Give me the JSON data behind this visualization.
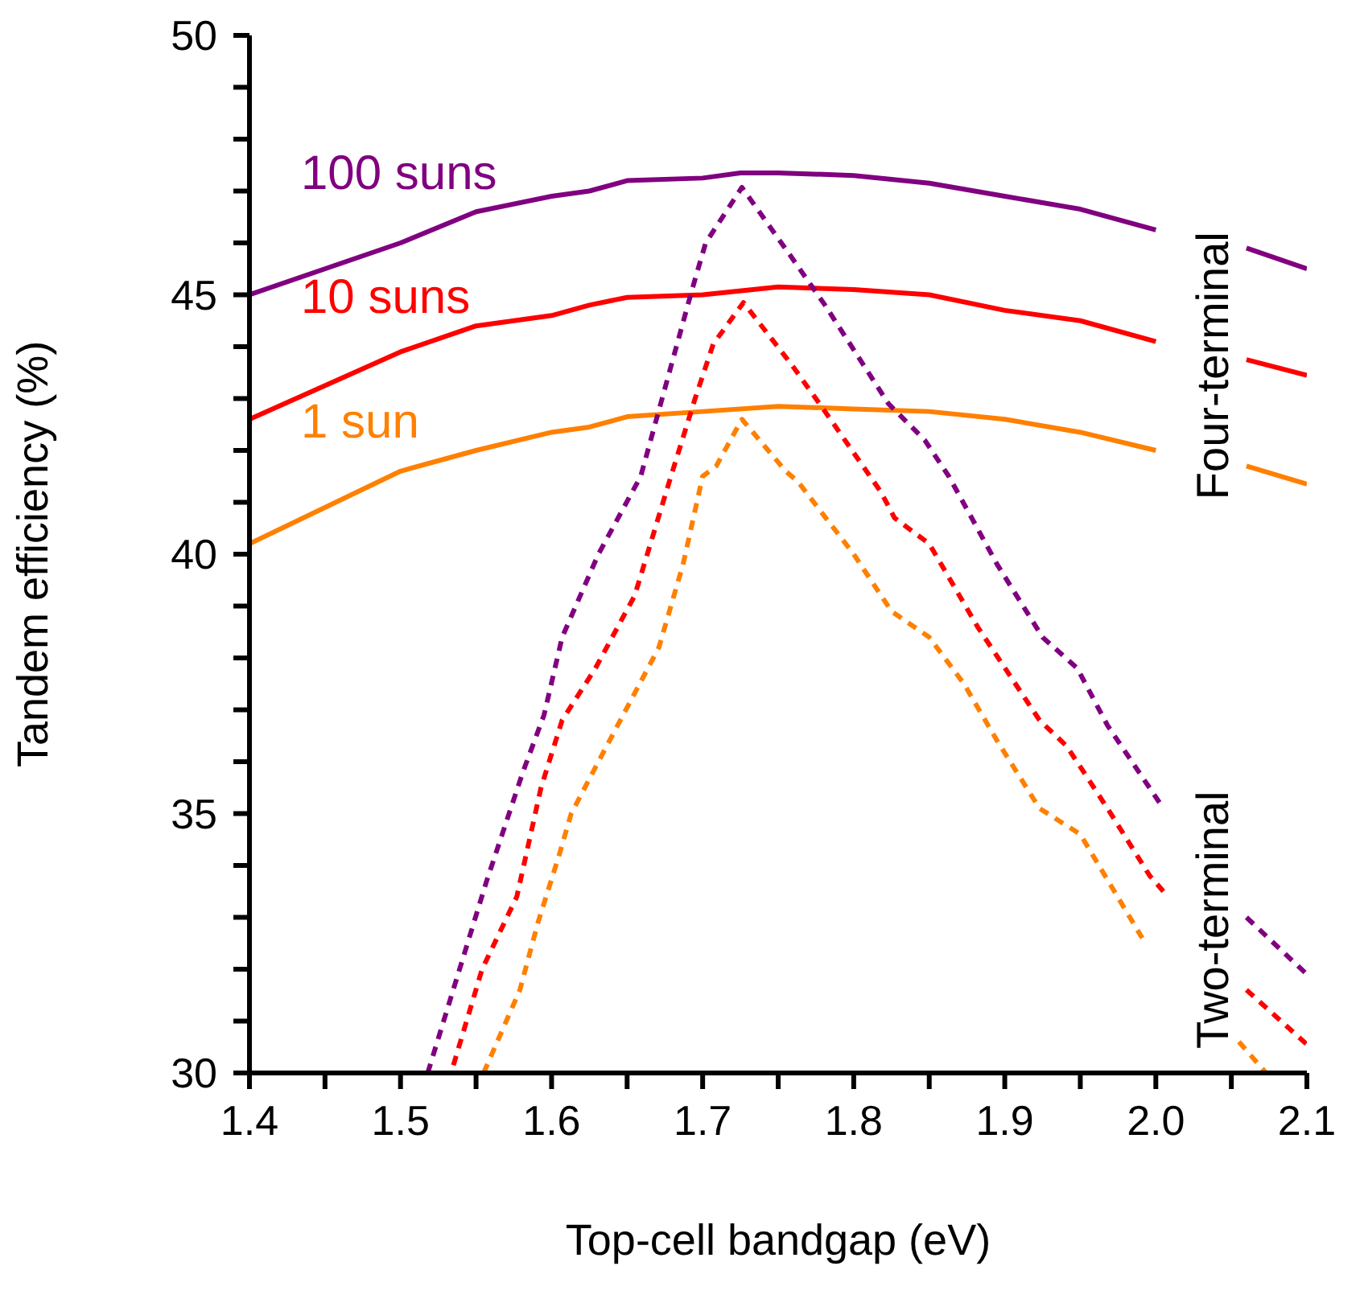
{
  "chart_data": {
    "type": "line",
    "xlabel": "Top-cell bandgap (eV)",
    "ylabel": "Tandem efficiency (%)",
    "xlim": [
      1.4,
      2.1
    ],
    "ylim": [
      30,
      50
    ],
    "xticks": [
      1.4,
      {
        "value": 1.45,
        "label": null
      },
      1.5,
      {
        "value": 1.55,
        "label": null
      },
      1.6,
      {
        "value": 1.65,
        "label": null
      },
      1.7,
      {
        "value": 1.75,
        "label": null
      },
      1.8,
      {
        "value": 1.85,
        "label": null
      },
      1.9,
      {
        "value": 1.95,
        "label": null
      },
      {
        "value": 2,
        "label": "2.0"
      },
      {
        "value": 2.05,
        "label": null
      },
      2.1
    ],
    "yticks": [
      30,
      {
        "value": 31,
        "label": null
      },
      {
        "value": 32,
        "label": null
      },
      {
        "value": 33,
        "label": null
      },
      {
        "value": 34,
        "label": null
      },
      35,
      {
        "value": 36,
        "label": null
      },
      {
        "value": 37,
        "label": null
      },
      {
        "value": 38,
        "label": null
      },
      {
        "value": 39,
        "label": null
      },
      40,
      {
        "value": 41,
        "label": null
      },
      {
        "value": 42,
        "label": null
      },
      {
        "value": 43,
        "label": null
      },
      {
        "value": 44,
        "label": null
      },
      45,
      {
        "value": 46,
        "label": null
      },
      {
        "value": 47,
        "label": null
      },
      {
        "value": 48,
        "label": null
      },
      {
        "value": 49,
        "label": null
      },
      50
    ],
    "grid": false,
    "annotations": [
      "Four-terminal",
      "Two-terminal"
    ],
    "series": [
      {
        "name": "100 suns",
        "color": "#800080",
        "line_style": "solid",
        "x": [
          1.4,
          1.5,
          1.55,
          1.6,
          1.625,
          1.65,
          1.7,
          1.725,
          1.75,
          1.8,
          1.85,
          1.9,
          1.95,
          2.0,
          2.03,
          2.06,
          2.1
        ],
        "values": [
          45.0,
          46.0,
          46.6,
          46.9,
          47.0,
          47.2,
          47.25,
          47.35,
          47.35,
          47.3,
          47.15,
          46.9,
          46.65,
          46.25,
          null,
          45.9,
          45.5
        ]
      },
      {
        "name": "10 suns",
        "color": "#ff0000",
        "line_style": "solid",
        "x": [
          1.4,
          1.5,
          1.55,
          1.6,
          1.625,
          1.65,
          1.7,
          1.75,
          1.8,
          1.85,
          1.9,
          1.95,
          2.0,
          2.03,
          2.06,
          2.1
        ],
        "values": [
          42.6,
          43.9,
          44.4,
          44.6,
          44.8,
          44.95,
          45.0,
          45.15,
          45.1,
          45.0,
          44.7,
          44.5,
          44.1,
          null,
          43.75,
          43.45
        ]
      },
      {
        "name": "1 sun",
        "color": "#ff8000",
        "line_style": "solid",
        "x": [
          1.4,
          1.5,
          1.55,
          1.6,
          1.625,
          1.65,
          1.7,
          1.75,
          1.8,
          1.85,
          1.9,
          1.95,
          2.0,
          2.03,
          2.06,
          2.1
        ],
        "values": [
          40.2,
          41.6,
          42.0,
          42.35,
          42.45,
          42.65,
          42.75,
          42.85,
          42.8,
          42.75,
          42.6,
          42.35,
          42.0,
          null,
          41.7,
          41.35
        ]
      },
      {
        "color": "#800080",
        "line_style": "dashed",
        "x": [
          1.518,
          1.557,
          1.581,
          1.595,
          1.607,
          1.631,
          1.659,
          1.693,
          1.702,
          1.726,
          1.757,
          1.781,
          1.823,
          1.847,
          1.863,
          1.895,
          1.925,
          1.948,
          1.968,
          2.005,
          2.03,
          2.06,
          2.1
        ],
        "values": [
          30.0,
          33.7,
          35.8,
          36.9,
          38.4,
          40.0,
          41.5,
          45.1,
          46.0,
          47.07,
          45.8,
          44.8,
          42.9,
          42.2,
          41.5,
          39.8,
          38.4,
          37.8,
          36.7,
          35.1,
          null,
          33.0,
          31.9
        ]
      },
      {
        "color": "#ff0000",
        "line_style": "dashed",
        "x": [
          1.535,
          1.554,
          1.577,
          1.593,
          1.607,
          1.629,
          1.655,
          1.679,
          1.695,
          1.707,
          1.727,
          1.759,
          1.781,
          1.818,
          1.827,
          1.85,
          1.882,
          1.923,
          1.941,
          1.968,
          1.996,
          2.005,
          2.03,
          2.06,
          2.1
        ],
        "values": [
          30.15,
          32.0,
          33.4,
          35.5,
          36.8,
          37.8,
          39.2,
          41.5,
          43.0,
          44.05,
          44.85,
          43.65,
          42.75,
          41.2,
          40.7,
          40.2,
          38.6,
          36.8,
          36.3,
          35.1,
          33.8,
          33.5,
          null,
          31.6,
          30.55
        ]
      },
      {
        "color": "#ff8000",
        "line_style": "dashed",
        "x": [
          1.555,
          1.579,
          1.591,
          1.605,
          1.613,
          1.631,
          1.651,
          1.671,
          1.687,
          1.7,
          1.709,
          1.726,
          1.755,
          1.763,
          1.8,
          1.825,
          1.85,
          1.873,
          1.895,
          1.923,
          1.95,
          1.991,
          2.02,
          2.055,
          2.073
        ],
        "values": [
          30.0,
          31.6,
          32.9,
          34.2,
          35.0,
          36.0,
          37.1,
          38.2,
          39.8,
          41.5,
          41.7,
          42.6,
          41.6,
          41.4,
          40.0,
          38.9,
          38.4,
          37.5,
          36.4,
          35.1,
          34.6,
          32.6,
          null,
          30.6,
          30.0
        ]
      }
    ]
  }
}
